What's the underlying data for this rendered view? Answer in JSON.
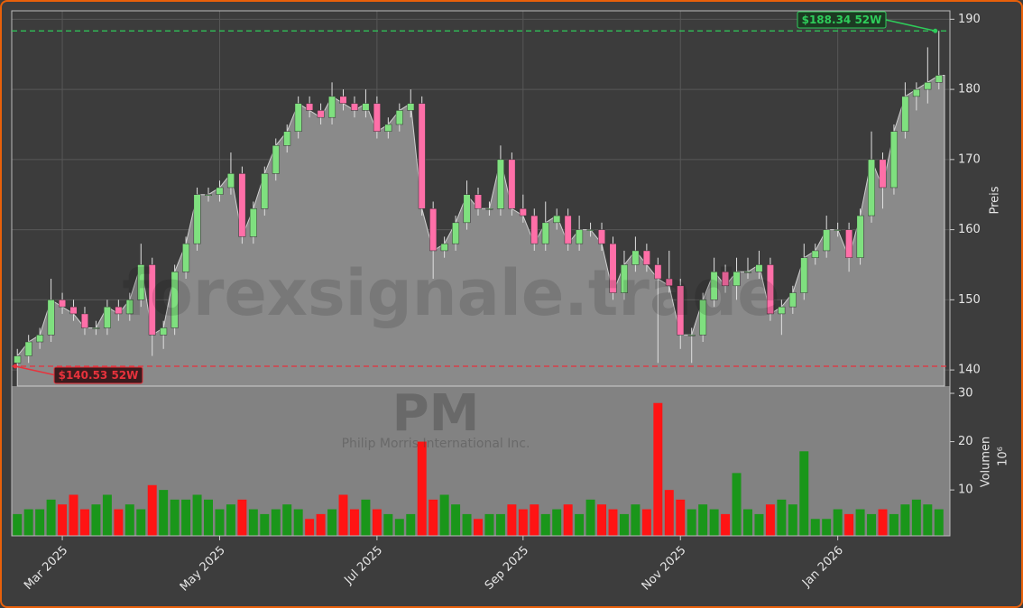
{
  "chart_data": {
    "type": "candlestick",
    "watermark": "forexsignale.trade",
    "symbol": "PM",
    "company": "Philip Morris International Inc.",
    "ylabel": "Preis",
    "grid": true,
    "up_color": "#7fe07f",
    "down_color": "#ff6fa8",
    "area_color": "#8a8a8a",
    "categories": [
      null,
      null,
      null,
      null,
      "Mar 2025",
      null,
      null,
      null,
      null,
      null,
      null,
      null,
      null,
      null,
      null,
      null,
      null,
      null,
      "May 2025",
      null,
      null,
      null,
      null,
      null,
      null,
      null,
      null,
      null,
      null,
      null,
      null,
      null,
      "Jul 2025",
      null,
      null,
      null,
      null,
      null,
      null,
      null,
      null,
      null,
      null,
      null,
      null,
      "Sep 2025",
      null,
      null,
      null,
      null,
      null,
      null,
      null,
      null,
      null,
      null,
      null,
      null,
      null,
      "Nov 2025",
      null,
      null,
      null,
      null,
      null,
      null,
      null,
      null,
      null,
      null,
      null,
      null,
      null,
      "Jan 2026",
      null,
      null,
      null,
      null,
      null,
      null,
      null,
      null,
      null
    ],
    "open": [
      141,
      142,
      144,
      145,
      150,
      149,
      148,
      146,
      146,
      149,
      148,
      150,
      155,
      145,
      146,
      154,
      158,
      165,
      165,
      166,
      168,
      159,
      163,
      168,
      172,
      174,
      178,
      177,
      176,
      179,
      178,
      177,
      178,
      174,
      175,
      177,
      178,
      163,
      157,
      158,
      161,
      165,
      163,
      163,
      170,
      163,
      162,
      158,
      161,
      162,
      158,
      160,
      160,
      158,
      151,
      155,
      157,
      155,
      153,
      152,
      145,
      145,
      150,
      154,
      152,
      154,
      154,
      155,
      148,
      149,
      151,
      156,
      157,
      160,
      160,
      156,
      162,
      170,
      166,
      174,
      179,
      180,
      181
    ],
    "high": [
      143,
      145,
      146,
      153,
      151,
      150,
      149,
      147,
      150,
      150,
      151,
      158,
      156,
      147,
      155,
      159,
      166,
      166,
      167,
      171,
      169,
      164,
      169,
      173,
      175,
      179,
      179,
      178,
      181,
      180,
      179,
      180,
      179,
      176,
      178,
      180,
      179,
      164,
      159,
      162,
      167,
      166,
      164,
      172,
      171,
      165,
      163,
      164,
      163,
      163,
      162,
      161,
      161,
      159,
      157,
      159,
      158,
      156,
      157,
      153,
      146,
      151,
      156,
      155,
      156,
      156,
      157,
      156,
      150,
      152,
      158,
      158,
      162,
      161,
      161,
      163,
      174,
      171,
      175,
      181,
      181,
      186,
      188.34
    ],
    "low": [
      140.53,
      141,
      143,
      144,
      148,
      147,
      145,
      145,
      145,
      147,
      147,
      149,
      142,
      143,
      145,
      153,
      157,
      164,
      164,
      165,
      158,
      158,
      162,
      167,
      171,
      173,
      176,
      175,
      175,
      177,
      176,
      176,
      173,
      173,
      174,
      176,
      162,
      153,
      156,
      157,
      160,
      162,
      162,
      162,
      162,
      161,
      157,
      157,
      160,
      157,
      157,
      159,
      157,
      150,
      150,
      154,
      154,
      141,
      151,
      143,
      141,
      144,
      149,
      151,
      150,
      153,
      153,
      147,
      145,
      148,
      150,
      155,
      156,
      159,
      154,
      155,
      161,
      163,
      165,
      173,
      177,
      178,
      180
    ],
    "close": [
      142,
      144,
      145,
      150,
      149,
      148,
      146,
      146,
      149,
      148,
      150,
      155,
      145,
      146,
      154,
      158,
      165,
      165,
      166,
      168,
      159,
      163,
      168,
      172,
      174,
      178,
      177,
      176,
      179,
      178,
      177,
      178,
      174,
      175,
      177,
      178,
      163,
      157,
      158,
      161,
      165,
      163,
      163,
      170,
      163,
      162,
      158,
      161,
      162,
      158,
      160,
      160,
      158,
      151,
      155,
      157,
      155,
      153,
      152,
      145,
      145,
      150,
      154,
      152,
      154,
      154,
      155,
      148,
      149,
      151,
      156,
      157,
      160,
      160,
      156,
      162,
      170,
      166,
      174,
      179,
      180,
      181,
      182
    ],
    "ylim": [
      137.7,
      191.2
    ],
    "yticks": [
      140,
      150,
      160,
      170,
      180,
      190
    ],
    "annotations": [
      {
        "text": "$188.34 52W",
        "value": 188.34,
        "color": "#2ecc5a"
      },
      {
        "text": "$140.53 52W",
        "value": 140.53,
        "color": "#e8323c"
      }
    ],
    "volume": {
      "ylabel": "Volumen",
      "scale_label": "10⁶",
      "up_color": "#1a961a",
      "down_color": "#ff1414",
      "values": [
        5,
        6,
        6,
        8,
        7,
        9,
        6,
        7,
        9,
        6,
        7,
        6,
        11,
        10,
        8,
        8,
        9,
        8,
        6,
        7,
        8,
        6,
        5,
        6,
        7,
        6,
        4,
        5,
        6,
        9,
        6,
        8,
        6,
        5,
        4,
        5,
        20,
        8,
        9,
        7,
        5,
        4,
        5,
        5,
        7,
        6,
        7,
        5,
        6,
        7,
        5,
        8,
        7,
        6,
        5,
        7,
        6,
        28,
        10,
        8,
        6,
        7,
        6,
        5,
        13.5,
        6,
        5,
        7,
        8,
        7,
        18,
        4,
        4,
        6,
        5,
        6,
        5,
        6,
        5,
        7,
        8,
        7,
        6
      ],
      "ylim": [
        0.5,
        31.5
      ],
      "yticks": [
        10,
        20,
        30
      ]
    }
  }
}
